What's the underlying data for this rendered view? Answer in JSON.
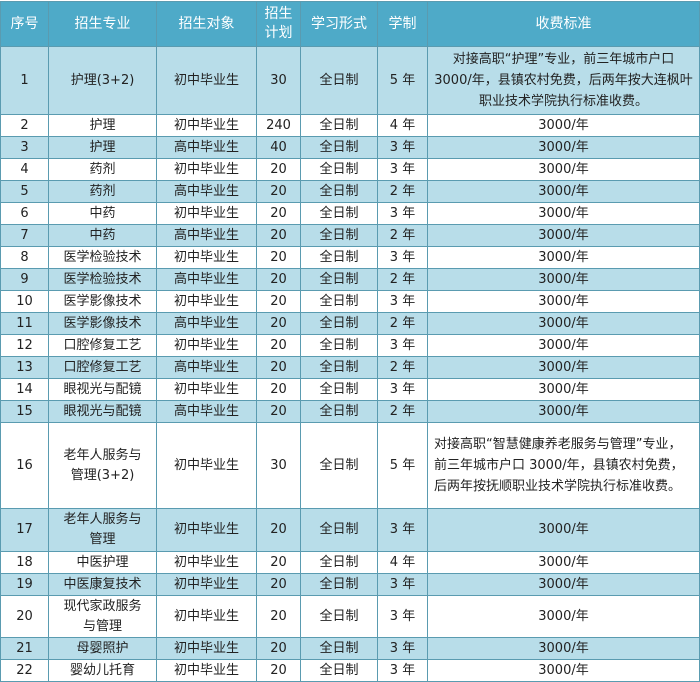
{
  "headers": [
    "序号",
    "招生专业",
    "招生对象",
    "招生\n计划",
    "学习形式",
    "学制",
    "收费标准"
  ],
  "colors": {
    "header": "#4eaac8",
    "row_alt": "#b8dde9",
    "row": "#ffffff",
    "border": "#5a9bb0"
  },
  "rows": [
    {
      "no": "1",
      "major": "护理(3+2)",
      "target": "初中毕业生",
      "plan": "30",
      "form": "全日制",
      "years": "5 年",
      "fee": "对接高职“护理”专业，前三年城市户口 3000/年，县镇农村免费，后两年按大连枫叶职业技术学院执行标准收费。"
    },
    {
      "no": "2",
      "major": "护理",
      "target": "初中毕业生",
      "plan": "240",
      "form": "全日制",
      "years": "4 年",
      "fee": "3000/年"
    },
    {
      "no": "3",
      "major": "护理",
      "target": "高中毕业生",
      "plan": "40",
      "form": "全日制",
      "years": "3 年",
      "fee": "3000/年"
    },
    {
      "no": "4",
      "major": "药剂",
      "target": "初中毕业生",
      "plan": "20",
      "form": "全日制",
      "years": "3 年",
      "fee": "3000/年"
    },
    {
      "no": "5",
      "major": "药剂",
      "target": "高中毕业生",
      "plan": "20",
      "form": "全日制",
      "years": "2 年",
      "fee": "3000/年"
    },
    {
      "no": "6",
      "major": "中药",
      "target": "初中毕业生",
      "plan": "20",
      "form": "全日制",
      "years": "3 年",
      "fee": "3000/年"
    },
    {
      "no": "7",
      "major": "中药",
      "target": "高中毕业生",
      "plan": "20",
      "form": "全日制",
      "years": "2 年",
      "fee": "3000/年"
    },
    {
      "no": "8",
      "major": "医学检验技术",
      "target": "初中毕业生",
      "plan": "20",
      "form": "全日制",
      "years": "3 年",
      "fee": "3000/年"
    },
    {
      "no": "9",
      "major": "医学检验技术",
      "target": "高中毕业生",
      "plan": "20",
      "form": "全日制",
      "years": "2 年",
      "fee": "3000/年"
    },
    {
      "no": "10",
      "major": "医学影像技术",
      "target": "初中毕业生",
      "plan": "20",
      "form": "全日制",
      "years": "3 年",
      "fee": "3000/年"
    },
    {
      "no": "11",
      "major": "医学影像技术",
      "target": "高中毕业生",
      "plan": "20",
      "form": "全日制",
      "years": "2 年",
      "fee": "3000/年"
    },
    {
      "no": "12",
      "major": "口腔修复工艺",
      "target": "初中毕业生",
      "plan": "20",
      "form": "全日制",
      "years": "3 年",
      "fee": "3000/年"
    },
    {
      "no": "13",
      "major": "口腔修复工艺",
      "target": "高中毕业生",
      "plan": "20",
      "form": "全日制",
      "years": "2 年",
      "fee": "3000/年"
    },
    {
      "no": "14",
      "major": "眼视光与配镜",
      "target": "初中毕业生",
      "plan": "20",
      "form": "全日制",
      "years": "3 年",
      "fee": "3000/年"
    },
    {
      "no": "15",
      "major": "眼视光与配镜",
      "target": "高中毕业生",
      "plan": "20",
      "form": "全日制",
      "years": "2 年",
      "fee": "3000/年"
    },
    {
      "no": "16",
      "major": "老年人服务与管理(3+2)",
      "target": "初中毕业生",
      "plan": "30",
      "form": "全日制",
      "years": "5 年",
      "fee": "对接高职“智慧健康养老服务与管理”专业，前三年城市户口 3000/年，县镇农村免费，后两年按抚顺职业技术学院执行标准收费。"
    },
    {
      "no": "17",
      "major": "老年人服务与管理",
      "target": "初中毕业生",
      "plan": "20",
      "form": "全日制",
      "years": "3 年",
      "fee": "3000/年"
    },
    {
      "no": "18",
      "major": "中医护理",
      "target": "初中毕业生",
      "plan": "20",
      "form": "全日制",
      "years": "4 年",
      "fee": "3000/年"
    },
    {
      "no": "19",
      "major": "中医康复技术",
      "target": "初中毕业生",
      "plan": "20",
      "form": "全日制",
      "years": "3 年",
      "fee": "3000/年"
    },
    {
      "no": "20",
      "major": "现代家政服务与管理",
      "target": "初中毕业生",
      "plan": "20",
      "form": "全日制",
      "years": "3 年",
      "fee": "3000/年"
    },
    {
      "no": "21",
      "major": "母婴照护",
      "target": "初中毕业生",
      "plan": "20",
      "form": "全日制",
      "years": "3 年",
      "fee": "3000/年"
    },
    {
      "no": "22",
      "major": "婴幼儿托育",
      "target": "初中毕业生",
      "plan": "20",
      "form": "全日制",
      "years": "3 年",
      "fee": "3000/年"
    }
  ]
}
